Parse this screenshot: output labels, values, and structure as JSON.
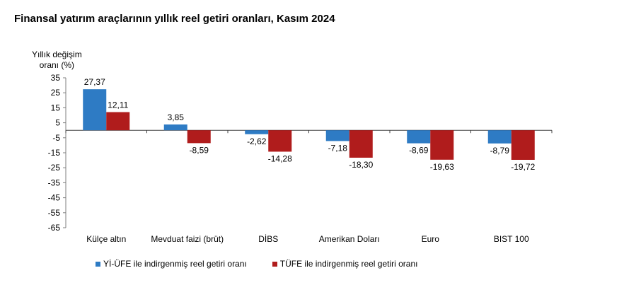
{
  "title": "Finansal yatırım araçlarının yıllık reel getiri oranları, Kasım 2024",
  "chart_data": {
    "type": "bar",
    "title": "Finansal yatırım araçlarının yıllık reel getiri oranları, Kasım 2024",
    "ylabel": "Yıllık değişim oranı (%)",
    "ylabel_lines": [
      "Yıllık değişim",
      "oranı (%)"
    ],
    "xlabel": "",
    "ylim": [
      -65,
      35
    ],
    "yticks": [
      "35",
      "25",
      "15",
      "5",
      "-5",
      "-15",
      "-25",
      "-35",
      "-45",
      "-55",
      "-65"
    ],
    "ytick_values": [
      35,
      25,
      15,
      5,
      -5,
      -15,
      -25,
      -35,
      -45,
      -55,
      -65
    ],
    "categories": [
      "Külçe altın",
      "Mevduat faizi (brüt)",
      "DİBS",
      "Amerikan Doları",
      "Euro",
      "BIST 100"
    ],
    "series": [
      {
        "name": "Yİ-ÜFE ile indirgenmiş reel getiri oranı",
        "color": "#2e7bc4",
        "values": [
          27.37,
          3.85,
          -2.62,
          -7.18,
          -8.69,
          -8.79
        ],
        "labels": [
          "27,37",
          "3,85",
          "-2,62",
          "-7,18",
          "-8,69",
          "-8,79"
        ]
      },
      {
        "name": "TÜFE ile indirgenmiş reel getiri oranı",
        "color": "#b01c1c",
        "values": [
          12.11,
          -8.59,
          -14.28,
          -18.3,
          -19.63,
          -19.72
        ],
        "labels": [
          "12,11",
          "-8,59",
          "-14,28",
          "-18,30",
          "-19,63",
          "-19,72"
        ]
      }
    ],
    "grid": false,
    "legend": "bottom"
  }
}
